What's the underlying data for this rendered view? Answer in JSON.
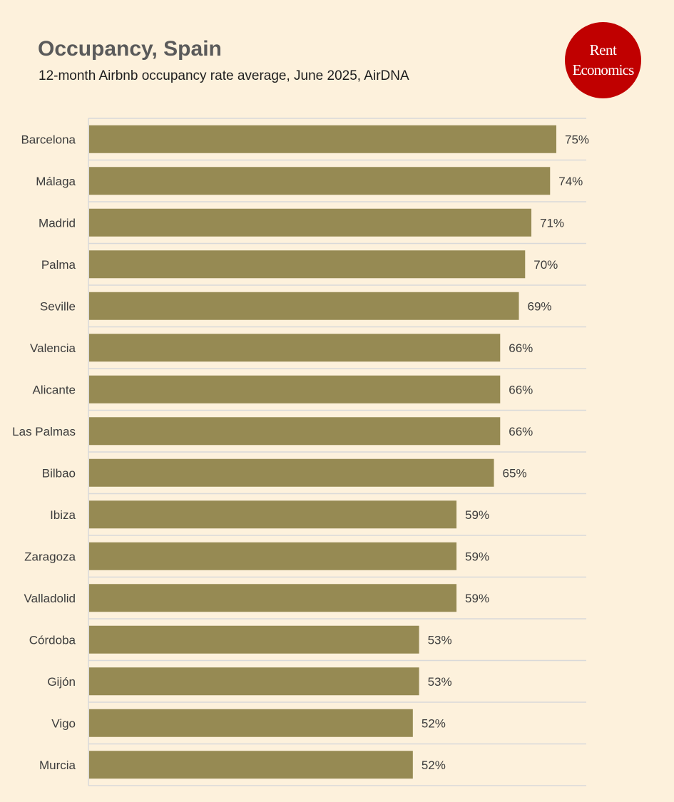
{
  "header": {
    "title": "Occupancy, Spain",
    "subtitle": "12-month Airbnb occupancy rate average, June 2025, AirDNA"
  },
  "logo": {
    "line1": "Rent",
    "line2": "Economics",
    "color": "#c00000"
  },
  "colors": {
    "background": "#fdf1dc",
    "bar": "#968a53",
    "grid": "#d9d9d9",
    "text": "#3c3c3c"
  },
  "chart_data": {
    "type": "bar",
    "orientation": "horizontal",
    "categories": [
      "Barcelona",
      "Málaga",
      "Madrid",
      "Palma",
      "Seville",
      "Valencia",
      "Alicante",
      "Las Palmas",
      "Bilbao",
      "Ibiza",
      "Zaragoza",
      "Valladolid",
      "Córdoba",
      "Gijón",
      "Vigo",
      "Murcia"
    ],
    "values": [
      75,
      74,
      71,
      70,
      69,
      66,
      66,
      66,
      65,
      59,
      59,
      59,
      53,
      53,
      52,
      52
    ],
    "value_labels": [
      "75%",
      "74%",
      "71%",
      "70%",
      "69%",
      "66%",
      "66%",
      "66%",
      "65%",
      "59%",
      "59%",
      "59%",
      "53%",
      "53%",
      "52%",
      "52%"
    ],
    "title": "Occupancy, Spain",
    "subtitle": "12-month Airbnb occupancy rate average, June 2025, AirDNA",
    "xlabel": "",
    "ylabel": "",
    "xlim": [
      0,
      80
    ],
    "grid": true,
    "legend": "none"
  }
}
